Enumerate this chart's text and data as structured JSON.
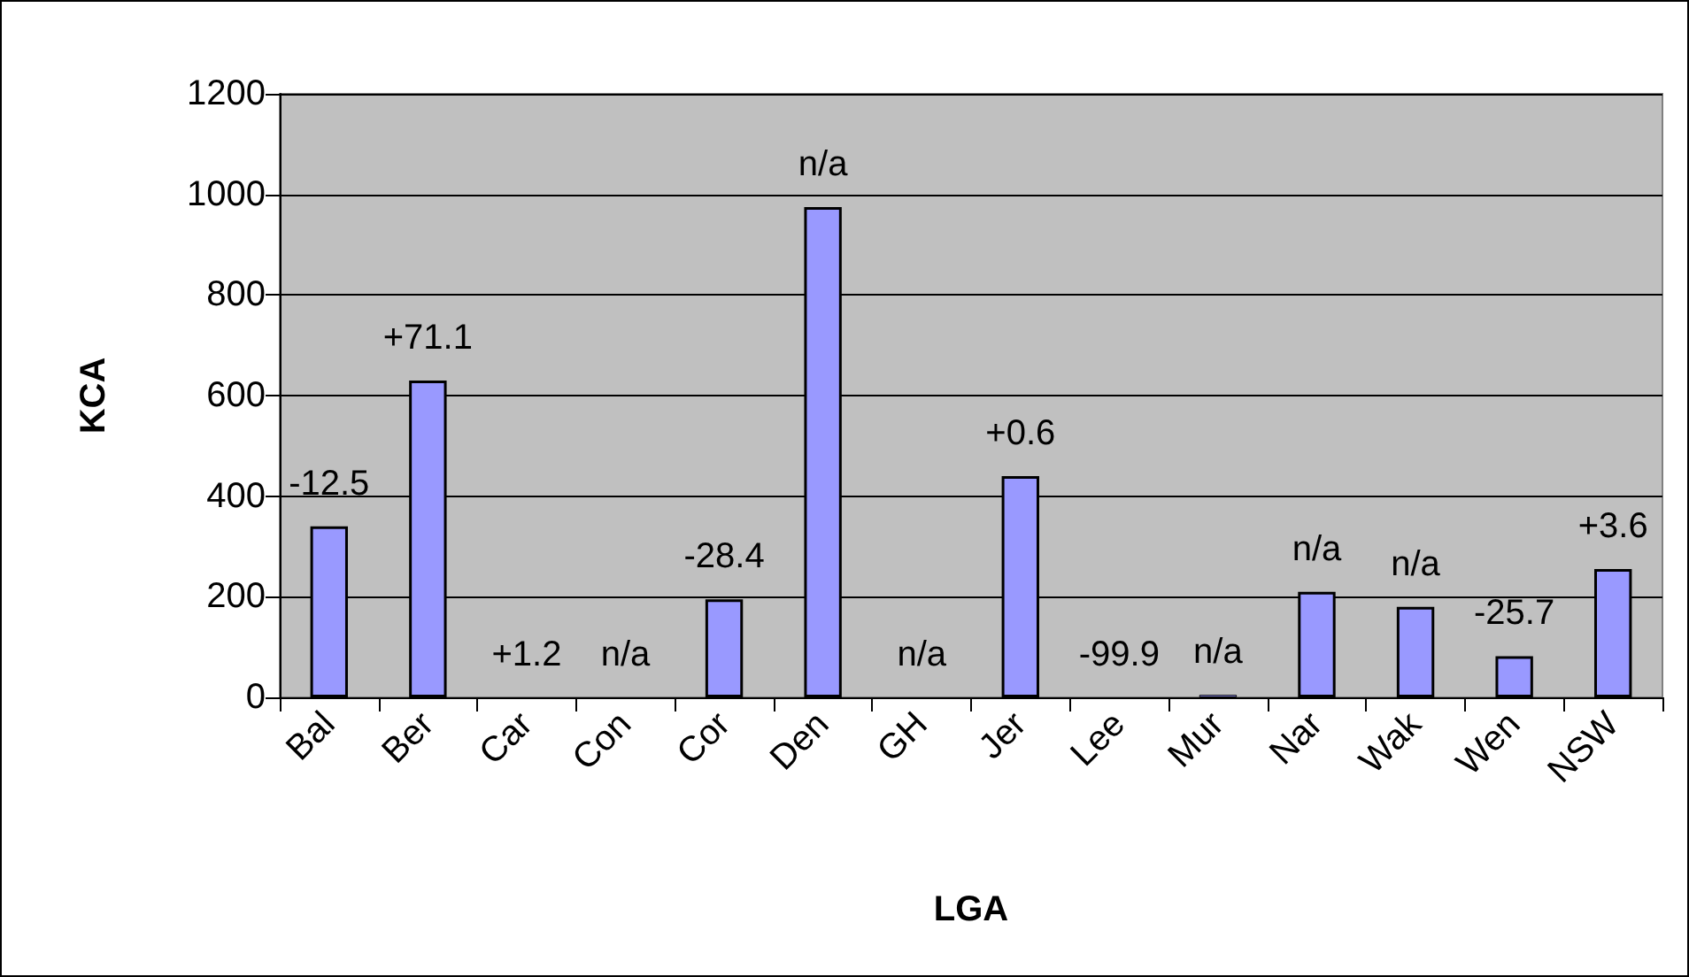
{
  "chart_data": {
    "type": "bar",
    "xlabel": "LGA",
    "ylabel": "KCA",
    "categories": [
      "Bal",
      "Ber",
      "Car",
      "Con",
      "Cor",
      "Den",
      "GH",
      "Jer",
      "Lee",
      "Mur",
      "Nar",
      "Wak",
      "Wen",
      "NSW"
    ],
    "values": [
      340,
      630,
      0,
      0,
      195,
      975,
      0,
      440,
      0,
      5,
      210,
      180,
      82,
      255
    ],
    "annotations": [
      {
        "text": "-12.5",
        "x": "Bal",
        "y": 340
      },
      {
        "text": "+71.1",
        "x": "Ber",
        "y": 630
      },
      {
        "text": "+1.2",
        "x": "Car",
        "y": 0
      },
      {
        "text": "n/a",
        "x": "Con",
        "y": 0
      },
      {
        "text": "-28.4",
        "x": "Cor",
        "y": 195
      },
      {
        "text": "n/a",
        "x": "Den",
        "y": 975
      },
      {
        "text": "n/a",
        "x": "GH",
        "y": 0
      },
      {
        "text": "+0.6",
        "x": "Jer",
        "y": 440
      },
      {
        "text": "-99.9",
        "x": "Lee",
        "y": 0
      },
      {
        "text": "n/a",
        "x": "Mur",
        "y": 5
      },
      {
        "text": "n/a",
        "x": "Nar",
        "y": 210
      },
      {
        "text": "n/a",
        "x": "Wak",
        "y": 180
      },
      {
        "text": "-25.7",
        "x": "Wen",
        "y": 82
      },
      {
        "text": "+3.6",
        "x": "NSW",
        "y": 255
      }
    ],
    "color": "#9999ff",
    "ylim": [
      0,
      1200
    ],
    "yticks": [
      0,
      200,
      400,
      600,
      800,
      {
        "value": 1000,
        "label": "1000"
      },
      {
        "value": 1200,
        "label": "1200"
      }
    ],
    "grid": "y"
  }
}
